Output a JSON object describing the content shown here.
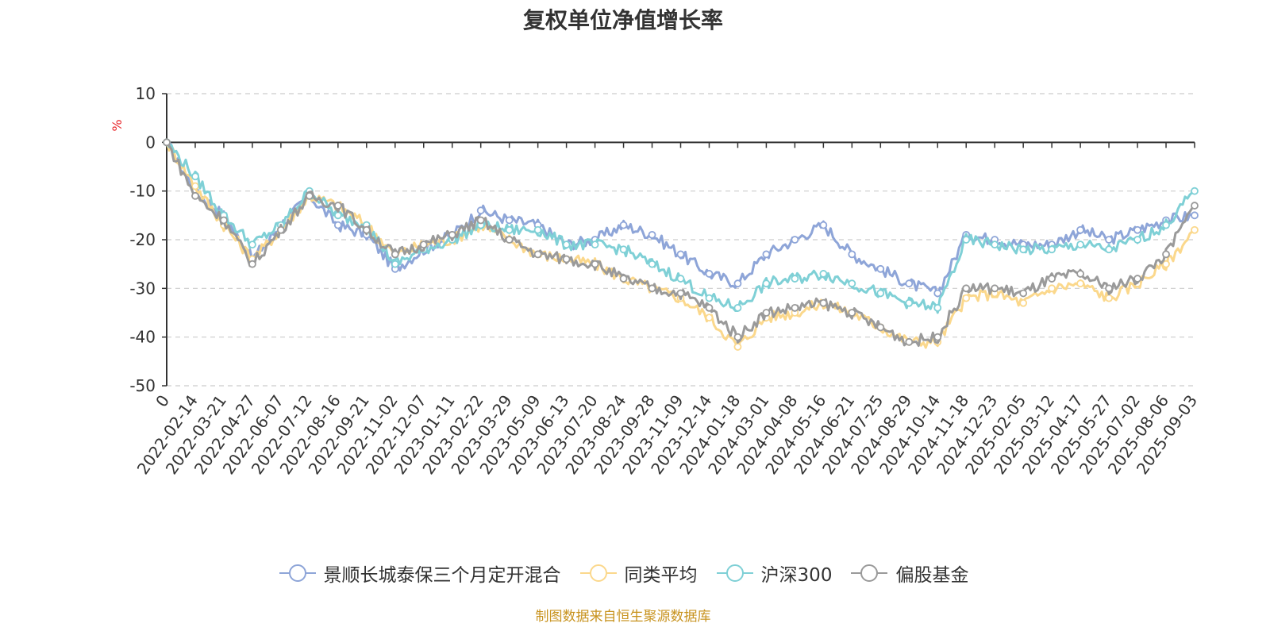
{
  "chart_data": {
    "type": "line",
    "title": "复权单位净值增长率",
    "ylabel": "%",
    "ylim": [
      -50,
      10
    ],
    "yticks": [
      10,
      0,
      -10,
      -20,
      -30,
      -40,
      -50
    ],
    "grid": true,
    "legend_position": "bottom",
    "x": [
      "0",
      "2022-02-14",
      "2022-03-21",
      "2022-04-27",
      "2022-06-07",
      "2022-07-12",
      "2022-08-16",
      "2022-09-21",
      "2022-11-02",
      "2022-12-07",
      "2023-01-11",
      "2023-02-22",
      "2023-03-29",
      "2023-05-09",
      "2023-06-13",
      "2023-07-20",
      "2023-08-24",
      "2023-09-28",
      "2023-11-09",
      "2023-12-14",
      "2024-01-18",
      "2024-03-01",
      "2024-04-08",
      "2024-05-16",
      "2024-06-21",
      "2024-07-25",
      "2024-08-29",
      "2024-10-14",
      "2024-11-18",
      "2024-12-23",
      "2025-02-05",
      "2025-03-12",
      "2025-04-17",
      "2025-05-27",
      "2025-07-02",
      "2025-08-06",
      "2025-09-03"
    ],
    "series": [
      {
        "name": "景顺长城泰保三个月定开混合",
        "color": "#8ea5d8",
        "values": [
          0,
          -10,
          -15,
          -24,
          -17,
          -11,
          -17,
          -19,
          -26,
          -22,
          -19,
          -14,
          -16,
          -17,
          -21,
          -20,
          -17,
          -19,
          -23,
          -27,
          -29,
          -23,
          -20,
          -17,
          -23,
          -26,
          -29,
          -31,
          -19,
          -20,
          -21,
          -21,
          -18,
          -20,
          -18,
          -16,
          -15
        ]
      },
      {
        "name": "同类平均",
        "color": "#fbd88c",
        "values": [
          0,
          -9,
          -17,
          -24,
          -18,
          -11,
          -13,
          -17,
          -23,
          -21,
          -20,
          -17,
          -20,
          -23,
          -24,
          -25,
          -28,
          -30,
          -32,
          -36,
          -42,
          -36,
          -35,
          -33,
          -35,
          -38,
          -41,
          -41,
          -32,
          -31,
          -33,
          -30,
          -29,
          -32,
          -29,
          -25,
          -18
        ]
      },
      {
        "name": "沪深300",
        "color": "#7fd0d6",
        "values": [
          0,
          -7,
          -15,
          -21,
          -17,
          -10,
          -15,
          -17,
          -25,
          -22,
          -20,
          -17,
          -18,
          -18,
          -21,
          -21,
          -22,
          -25,
          -28,
          -32,
          -34,
          -29,
          -28,
          -27,
          -29,
          -31,
          -33,
          -34,
          -20,
          -21,
          -22,
          -22,
          -21,
          -22,
          -20,
          -17,
          -10
        ]
      },
      {
        "name": "偏股基金",
        "color": "#9a9a9a",
        "values": [
          0,
          -11,
          -16,
          -25,
          -18,
          -11,
          -13,
          -18,
          -23,
          -21,
          -19,
          -16,
          -20,
          -23,
          -24,
          -25,
          -28,
          -30,
          -31,
          -34,
          -40,
          -35,
          -34,
          -33,
          -35,
          -38,
          -41,
          -40,
          -30,
          -30,
          -31,
          -28,
          -27,
          -30,
          -28,
          -23,
          -13
        ]
      }
    ]
  },
  "footer": {
    "source": "制图数据来自恒生聚源数据库"
  }
}
